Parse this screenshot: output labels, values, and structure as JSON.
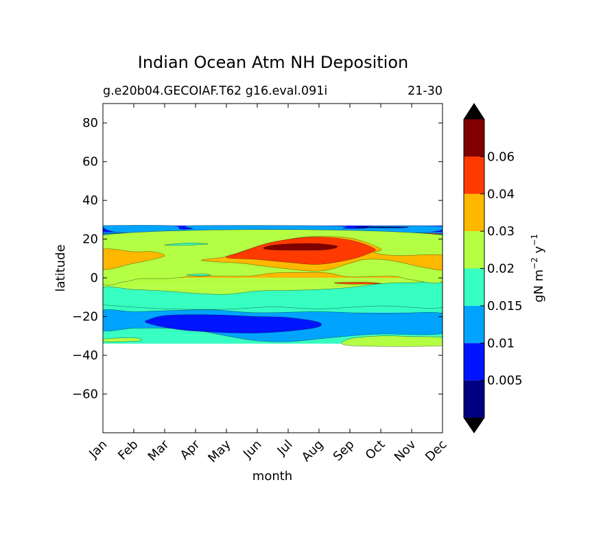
{
  "chart_data": {
    "type": "heatmap",
    "title": "Indian Ocean Atm NH Deposition",
    "subtitle_left": "g.e20b04.GECOIAF.T62 g16.eval.091i",
    "subtitle_right": "21-30",
    "xlabel": "month",
    "ylabel": "latitude",
    "x_ticks": [
      "Jan",
      "Feb",
      "Mar",
      "Apr",
      "May",
      "Jun",
      "Jul",
      "Aug",
      "Sep",
      "Oct",
      "Nov",
      "Dec"
    ],
    "ylim": [
      -80,
      90
    ],
    "y_ticks": [
      80,
      60,
      40,
      20,
      0,
      -20,
      -40,
      -60
    ],
    "y_tick_labels": [
      "80",
      "60",
      "40",
      "20",
      "0",
      "−20",
      "−40",
      "−60"
    ],
    "data_lat_range": [
      -34,
      27
    ],
    "colorbar": {
      "label_base": "gN m",
      "label_exp1": "−2",
      "label_mid": " y",
      "label_exp2": "−1",
      "extend": "both",
      "tick_labels": [
        "0.005",
        "0.01",
        "0.015",
        "0.02",
        "0.03",
        "0.04",
        "0.06"
      ],
      "colors": [
        "#000080",
        "#0014ff",
        "#00a4ff",
        "#36ffc1",
        "#b4ff43",
        "#ffb800",
        "#ff3a00",
        "#800000"
      ],
      "under_color": "#000000",
      "over_color": "#000000"
    },
    "bands": [
      {
        "lat_from": 23.5,
        "lat_to": 27,
        "level": 1
      },
      {
        "lat_from": 22,
        "lat_to": 23.5,
        "level": 2
      },
      {
        "lat_from": 20.5,
        "lat_to": 22,
        "level": 5
      },
      {
        "lat_from": 15,
        "lat_to": 20.5,
        "level": 5
      },
      {
        "lat_from": 5,
        "lat_to": 15,
        "level": 5
      },
      {
        "lat_from": 0,
        "lat_to": 5,
        "level": 5
      },
      {
        "lat_from": -5,
        "lat_to": 0,
        "level": 4
      },
      {
        "lat_from": -10,
        "lat_to": -5,
        "level": 4
      },
      {
        "lat_from": -14,
        "lat_to": -10,
        "level": 4
      },
      {
        "lat_from": -18,
        "lat_to": -14,
        "level": 3
      },
      {
        "lat_from": -26,
        "lat_to": -18,
        "level": 2
      },
      {
        "lat_from": -30,
        "lat_to": -26,
        "level": 3
      },
      {
        "lat_from": -34,
        "lat_to": -30,
        "level": 3
      }
    ],
    "contours": [
      {
        "level": 6,
        "points": [
          [
            0.0,
            23
          ],
          [
            1.0,
            23
          ],
          [
            2.0,
            22.5
          ],
          [
            3.0,
            22.3
          ],
          [
            4.0,
            22.8
          ],
          [
            5.0,
            23.5
          ],
          [
            6.0,
            23
          ],
          [
            7.0,
            22
          ],
          [
            8.0,
            22.5
          ],
          [
            9.0,
            23
          ],
          [
            10.0,
            22.5
          ],
          [
            11.0,
            23
          ]
        ]
      },
      {
        "level": 2,
        "points": [
          [
            -0.05,
            26.5
          ],
          [
            0.5,
            23.5
          ],
          [
            2.5,
            22.8
          ],
          [
            4.5,
            23.3
          ],
          [
            6.0,
            23
          ],
          [
            8.5,
            23.3
          ],
          [
            10.5,
            23.5
          ],
          [
            11.05,
            26.5
          ],
          [
            8.8,
            26.8
          ],
          [
            8.5,
            25.6
          ],
          [
            7.8,
            25.6
          ],
          [
            7.5,
            26.8
          ],
          [
            3.0,
            27
          ],
          [
            2.9,
            25.4
          ],
          [
            2.5,
            25.2
          ],
          [
            2.2,
            27
          ],
          [
            -0.05,
            27
          ]
        ]
      },
      {
        "level": 0,
        "points": [
          [
            8.3,
            25.9
          ],
          [
            9.6,
            25.8
          ],
          [
            9.8,
            26.3
          ],
          [
            8.4,
            26.3
          ]
        ]
      },
      {
        "level": 3,
        "points": [
          [
            -0.05,
            -5
          ],
          [
            1.0,
            -6
          ],
          [
            2.0,
            -6.8
          ],
          [
            3.0,
            -8
          ],
          [
            4.0,
            -8.5
          ],
          [
            5.0,
            -6.8
          ],
          [
            6.0,
            -6.5
          ],
          [
            7.0,
            -6
          ],
          [
            8.0,
            -5
          ],
          [
            9.0,
            -3
          ],
          [
            10.0,
            -2.5
          ],
          [
            11.05,
            -3
          ],
          [
            11.05,
            -15
          ],
          [
            9.0,
            -14.5
          ],
          [
            7.0,
            -16
          ],
          [
            5.5,
            -15
          ],
          [
            4.0,
            -16.2
          ],
          [
            2.0,
            -16
          ],
          [
            0.0,
            -14
          ],
          [
            -0.05,
            -14
          ]
        ]
      },
      {
        "level": 4,
        "points": [
          [
            -0.05,
            22
          ],
          [
            11.05,
            22
          ],
          [
            11.05,
            -1
          ],
          [
            10.0,
            -1
          ],
          [
            9.4,
            0.8
          ],
          [
            8.0,
            0.5
          ],
          [
            7.3,
            2.5
          ],
          [
            6.5,
            2.8
          ],
          [
            5.5,
            2.5
          ],
          [
            5.0,
            1.3
          ],
          [
            4.5,
            0.8
          ],
          [
            3.0,
            0.8
          ],
          [
            2.0,
            -0.5
          ],
          [
            1.2,
            -0.5
          ],
          [
            0.7,
            -2.0
          ],
          [
            -0.05,
            -2
          ]
        ]
      },
      {
        "level": 5,
        "points": [
          [
            -0.05,
            14.5
          ],
          [
            1.0,
            13.5
          ],
          [
            1.6,
            13.5
          ],
          [
            2.0,
            11.5
          ],
          [
            1.6,
            9.5
          ],
          [
            1.0,
            7.5
          ],
          [
            -0.05,
            4.5
          ]
        ]
      },
      {
        "level": 5,
        "points": [
          [
            3.2,
            9
          ],
          [
            4.0,
            11
          ],
          [
            5.0,
            16
          ],
          [
            6.5,
            21
          ],
          [
            8.0,
            20.5
          ],
          [
            9.0,
            15
          ],
          [
            8.8,
            13
          ],
          [
            9.5,
            11.5
          ],
          [
            11.05,
            11.5
          ],
          [
            11.05,
            4.5
          ],
          [
            10.5,
            5
          ],
          [
            9.3,
            9
          ],
          [
            8.5,
            9.5
          ],
          [
            8.0,
            7.5
          ],
          [
            7.0,
            3.5
          ],
          [
            5.5,
            5.5
          ],
          [
            4.5,
            7.5
          ]
        ]
      },
      {
        "level": 6,
        "points": [
          [
            4.0,
            10.5
          ],
          [
            4.5,
            13.5
          ],
          [
            5.5,
            18.5
          ],
          [
            6.8,
            21
          ],
          [
            8.0,
            19.5
          ],
          [
            8.8,
            15
          ],
          [
            8.6,
            12.5
          ],
          [
            8.0,
            9.5
          ],
          [
            7.0,
            7
          ],
          [
            6.0,
            8
          ],
          [
            5.0,
            9.5
          ]
        ]
      },
      {
        "level": 7,
        "points": [
          [
            5.2,
            15.3
          ],
          [
            5.5,
            16.8
          ],
          [
            6.2,
            17.6
          ],
          [
            7.0,
            17.6
          ],
          [
            7.6,
            16.2
          ],
          [
            7.2,
            14.5
          ],
          [
            6.2,
            14.3
          ],
          [
            5.5,
            14.5
          ]
        ]
      },
      {
        "level": 2,
        "points": [
          [
            -0.05,
            -17
          ],
          [
            1.0,
            -17.5
          ],
          [
            2.0,
            -17
          ],
          [
            3.5,
            -16.5
          ],
          [
            5.0,
            -18
          ],
          [
            7.0,
            -17.5
          ],
          [
            9.0,
            -18.5
          ],
          [
            11.05,
            -18.5
          ],
          [
            11.05,
            -28.5
          ],
          [
            9.0,
            -29
          ],
          [
            8.0,
            -30
          ],
          [
            7.0,
            -31.5
          ],
          [
            6.0,
            -33
          ],
          [
            5.0,
            -32.5
          ],
          [
            4.0,
            -30
          ],
          [
            3.0,
            -27
          ],
          [
            2.0,
            -26
          ],
          [
            1.0,
            -26
          ],
          [
            -0.05,
            -27
          ]
        ]
      },
      {
        "level": 1,
        "points": [
          [
            1.5,
            -21.5
          ],
          [
            2.0,
            -19.5
          ],
          [
            3.0,
            -19
          ],
          [
            4.0,
            -19.3
          ],
          [
            5.0,
            -20
          ],
          [
            6.0,
            -20.5
          ],
          [
            7.0,
            -23
          ],
          [
            6.8,
            -26
          ],
          [
            5.0,
            -28.5
          ],
          [
            3.0,
            -27.5
          ],
          [
            2.0,
            -25.5
          ],
          [
            1.4,
            -23
          ]
        ]
      },
      {
        "level": 4,
        "points": [
          [
            8.0,
            -31.5
          ],
          [
            9.0,
            -30
          ],
          [
            10.0,
            -30.3
          ],
          [
            11.05,
            -31
          ],
          [
            11.05,
            -35
          ],
          [
            8.0,
            -35
          ]
        ]
      },
      {
        "level": 4,
        "points": [
          [
            0.1,
            -31.5
          ],
          [
            1.0,
            -31
          ],
          [
            1.2,
            -32.5
          ],
          [
            0.1,
            -33
          ]
        ]
      },
      {
        "level": 3,
        "points": [
          [
            2.7,
            1.5
          ],
          [
            3.2,
            2
          ],
          [
            3.5,
            1.5
          ],
          [
            3.2,
            1
          ]
        ]
      },
      {
        "level": 3,
        "points": [
          [
            2.0,
            17
          ],
          [
            2.8,
            18
          ],
          [
            3.4,
            17.5
          ],
          [
            2.6,
            16.8
          ]
        ]
      },
      {
        "level": 6,
        "points": [
          [
            7.5,
            -2.5
          ],
          [
            8.5,
            -2.3
          ],
          [
            9.0,
            -3
          ],
          [
            8.0,
            -3.2
          ]
        ]
      }
    ]
  }
}
